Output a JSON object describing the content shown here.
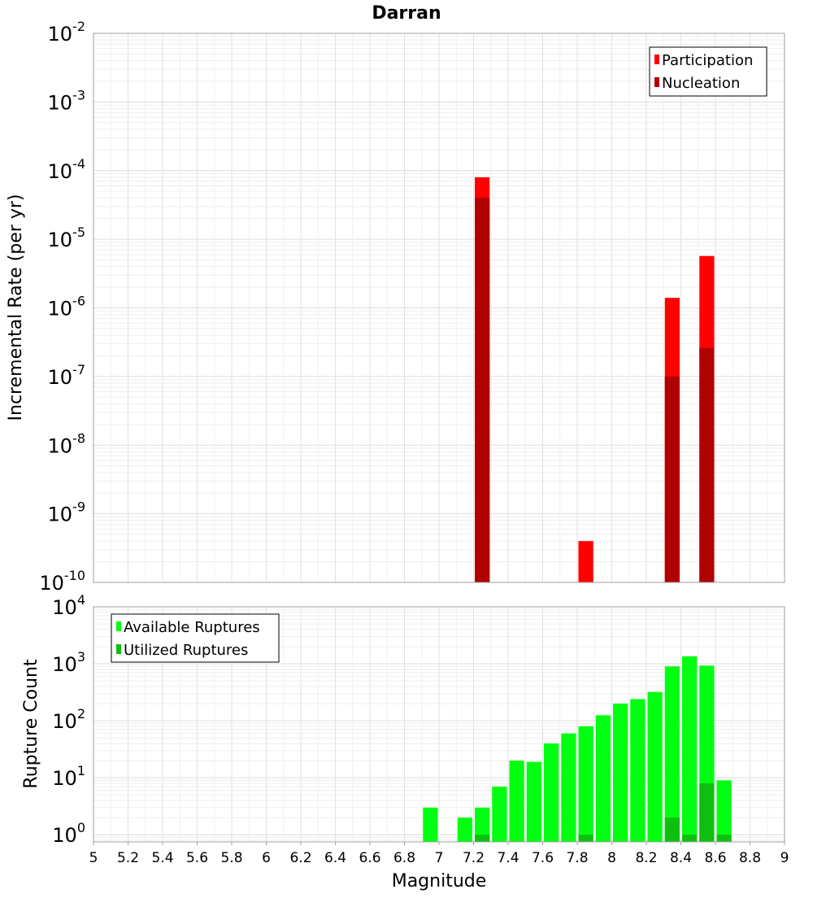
{
  "chart_data": [
    {
      "type": "bar",
      "title": "Darran",
      "xlabel": "",
      "ylabel": "Incremental Rate (per yr)",
      "yscale": "log",
      "ylim": [
        1e-10,
        0.01
      ],
      "xlim": [
        5,
        9
      ],
      "bar_width": 0.1,
      "grid": true,
      "legend_position": "top-right",
      "series": [
        {
          "name": "Participation",
          "color": "#ff0000",
          "x": [
            7.25,
            7.85,
            8.35,
            8.55
          ],
          "values": [
            8e-05,
            4e-10,
            1.4e-06,
            5.7e-06
          ]
        },
        {
          "name": "Nucleation",
          "color": "#b00000",
          "x": [
            7.25,
            8.35,
            8.55
          ],
          "values": [
            4e-05,
            1e-07,
            2.6e-07
          ]
        }
      ],
      "yticks": [
        {
          "base": "10",
          "exp": "-10"
        },
        {
          "base": "10",
          "exp": "-9"
        },
        {
          "base": "10",
          "exp": "-8"
        },
        {
          "base": "10",
          "exp": "-7"
        },
        {
          "base": "10",
          "exp": "-6"
        },
        {
          "base": "10",
          "exp": "-5"
        },
        {
          "base": "10",
          "exp": "-4"
        },
        {
          "base": "10",
          "exp": "-3"
        },
        {
          "base": "10",
          "exp": "-2"
        }
      ]
    },
    {
      "type": "bar",
      "title": "",
      "xlabel": "Magnitude",
      "ylabel": "Rupture Count",
      "yscale": "log",
      "ylim": [
        0.75,
        10000
      ],
      "xlim": [
        5,
        9
      ],
      "bar_width": 0.1,
      "grid": true,
      "legend_position": "top-left",
      "series": [
        {
          "name": "Available Ruptures",
          "color": "#00ff10",
          "x": [
            6.95,
            7.15,
            7.25,
            7.35,
            7.45,
            7.55,
            7.65,
            7.75,
            7.85,
            7.95,
            8.05,
            8.15,
            8.25,
            8.35,
            8.45,
            8.55,
            8.65
          ],
          "values": [
            3,
            2,
            3,
            7,
            20,
            19,
            40,
            60,
            80,
            125,
            200,
            240,
            320,
            900,
            1350,
            930,
            9
          ]
        },
        {
          "name": "Utilized Ruptures",
          "color": "#0ec00e",
          "x": [
            7.25,
            7.85,
            8.35,
            8.45,
            8.55,
            8.65
          ],
          "values": [
            1,
            1,
            2,
            1,
            8,
            1
          ]
        }
      ],
      "xticks": [
        "5",
        "5.2",
        "5.4",
        "5.6",
        "5.8",
        "6",
        "6.2",
        "6.4",
        "6.6",
        "6.8",
        "7",
        "7.2",
        "7.4",
        "7.6",
        "7.8",
        "8",
        "8.2",
        "8.4",
        "8.6",
        "8.8",
        "9"
      ],
      "yticks": [
        {
          "base": "10",
          "exp": "0"
        },
        {
          "base": "10",
          "exp": "1"
        },
        {
          "base": "10",
          "exp": "2"
        },
        {
          "base": "10",
          "exp": "3"
        },
        {
          "base": "10",
          "exp": "4"
        }
      ]
    }
  ]
}
